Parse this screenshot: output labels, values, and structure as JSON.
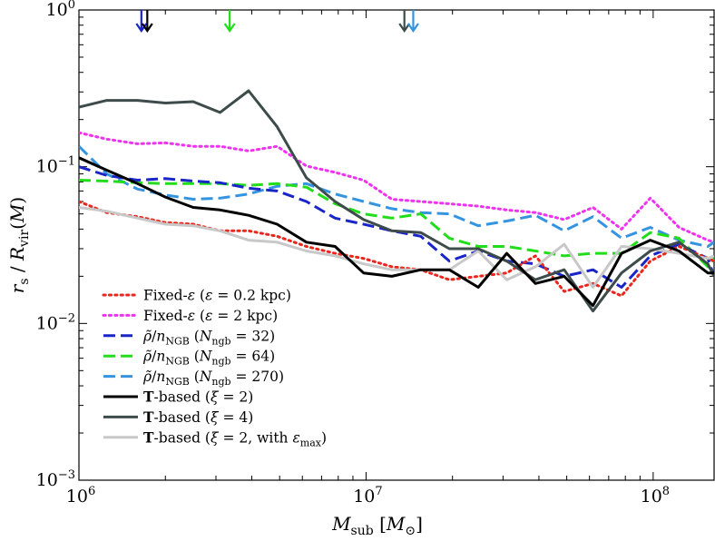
{
  "chart_data": {
    "type": "line",
    "xlabel": "M_sub [M_⊙]",
    "ylabel": "r_s / R_vir(M)",
    "xscale": "log",
    "yscale": "log",
    "xlim": [
      1000000,
      163000000
    ],
    "ylim": [
      0.001,
      1
    ],
    "x_ticks": [
      {
        "value": 1000000,
        "base": "10",
        "exp": "6"
      },
      {
        "value": 10000000,
        "base": "10",
        "exp": "7"
      },
      {
        "value": 100000000,
        "base": "10",
        "exp": "8"
      }
    ],
    "y_ticks": [
      {
        "value": 0.001,
        "base": "10",
        "exp": "−3"
      },
      {
        "value": 0.01,
        "base": "10",
        "exp": "−2"
      },
      {
        "value": 0.1,
        "base": "10",
        "exp": "−1"
      },
      {
        "value": 1,
        "base": "10",
        "exp": "0"
      }
    ],
    "grid": false,
    "legend_position": "bottom-left",
    "legend": [
      {
        "key": "fixed02",
        "segments": [
          [
            "Fixed-",
            "r"
          ],
          [
            "ε",
            "i"
          ],
          [
            " (",
            "r"
          ],
          [
            "ε",
            "i"
          ],
          [
            " = 0.2 kpc)",
            "r"
          ]
        ]
      },
      {
        "key": "fixed2",
        "segments": [
          [
            "Fixed-",
            "r"
          ],
          [
            "ε",
            "i"
          ],
          [
            " (",
            "r"
          ],
          [
            "ε",
            "i"
          ],
          [
            " = 2 kpc)",
            "r"
          ]
        ]
      },
      {
        "key": "ngb32",
        "segments": [
          [
            "ρ̃",
            "i"
          ],
          [
            "/",
            "r"
          ],
          [
            "n",
            "i"
          ],
          [
            "NGB",
            "sub"
          ],
          [
            " (",
            "r"
          ],
          [
            "N",
            "i"
          ],
          [
            "ngb",
            "sub"
          ],
          [
            " = 32)",
            "r"
          ]
        ]
      },
      {
        "key": "ngb64",
        "segments": [
          [
            "ρ̃",
            "i"
          ],
          [
            "/",
            "r"
          ],
          [
            "n",
            "i"
          ],
          [
            "NGB",
            "sub"
          ],
          [
            " (",
            "r"
          ],
          [
            "N",
            "i"
          ],
          [
            "ngb",
            "sub"
          ],
          [
            " = 64)",
            "r"
          ]
        ]
      },
      {
        "key": "ngb270",
        "segments": [
          [
            "ρ̃",
            "i"
          ],
          [
            "/",
            "r"
          ],
          [
            "n",
            "i"
          ],
          [
            "NGB",
            "sub"
          ],
          [
            " (",
            "r"
          ],
          [
            "N",
            "i"
          ],
          [
            "ngb",
            "sub"
          ],
          [
            " = 270)",
            "r"
          ]
        ]
      },
      {
        "key": "t2",
        "segments": [
          [
            "T",
            "b"
          ],
          [
            "-based (",
            "r"
          ],
          [
            "ξ",
            "i"
          ],
          [
            " = 2)",
            "r"
          ]
        ]
      },
      {
        "key": "t4",
        "segments": [
          [
            "T",
            "b"
          ],
          [
            "-based (",
            "r"
          ],
          [
            "ξ",
            "i"
          ],
          [
            " = 4)",
            "r"
          ]
        ]
      },
      {
        "key": "t2max",
        "segments": [
          [
            "T",
            "b"
          ],
          [
            "-based (",
            "r"
          ],
          [
            "ξ",
            "i"
          ],
          [
            " = 2, with ",
            "r"
          ],
          [
            "ε",
            "i"
          ],
          [
            "max",
            "sub"
          ],
          [
            ")",
            "r"
          ]
        ]
      }
    ],
    "series": [
      {
        "key": "fixed02",
        "color": "#e8281e",
        "dash": "dotted",
        "width": 3,
        "x": [
          1000000,
          1250000,
          1600000,
          2000000,
          2500000,
          3100000,
          3900000,
          4900000,
          6200000,
          7800000,
          9800000,
          12300000,
          15500000,
          19500000,
          24600000,
          30900000,
          38900000,
          49000000,
          61700000,
          77600000,
          97700000,
          123000000,
          155000000,
          163000000
        ],
        "y": [
          0.06,
          0.051,
          0.048,
          0.044,
          0.043,
          0.039,
          0.039,
          0.036,
          0.031,
          0.028,
          0.026,
          0.023,
          0.022,
          0.019,
          0.02,
          0.021,
          0.027,
          0.016,
          0.018,
          0.015,
          0.025,
          0.031,
          0.026,
          0.025
        ]
      },
      {
        "key": "fixed2",
        "color": "#ee33ee",
        "dash": "dotted",
        "width": 3,
        "x": [
          1000000,
          1250000,
          1600000,
          2000000,
          2500000,
          3100000,
          3900000,
          4900000,
          6200000,
          7800000,
          9800000,
          12300000,
          15500000,
          19500000,
          24600000,
          30900000,
          38900000,
          49000000,
          61700000,
          77600000,
          97700000,
          123000000,
          155000000,
          163000000
        ],
        "y": [
          0.165,
          0.15,
          0.14,
          0.142,
          0.135,
          0.135,
          0.126,
          0.135,
          0.101,
          0.092,
          0.082,
          0.062,
          0.06,
          0.058,
          0.056,
          0.053,
          0.051,
          0.046,
          0.055,
          0.04,
          0.063,
          0.041,
          0.034,
          0.033
        ]
      },
      {
        "key": "ngb32",
        "color": "#1a25c8",
        "dash": "dashed",
        "width": 3,
        "x": [
          1000000,
          1250000,
          1600000,
          2000000,
          2500000,
          3100000,
          3900000,
          4900000,
          6200000,
          7800000,
          9800000,
          12300000,
          15500000,
          19500000,
          24600000,
          30900000,
          38900000,
          49000000,
          61700000,
          77600000,
          97700000,
          123000000,
          155000000,
          163000000
        ],
        "y": [
          0.1,
          0.088,
          0.082,
          0.084,
          0.081,
          0.079,
          0.073,
          0.07,
          0.06,
          0.047,
          0.043,
          0.039,
          0.036,
          0.025,
          0.029,
          0.025,
          0.024,
          0.02,
          0.022,
          0.017,
          0.027,
          0.032,
          0.026,
          0.02
        ]
      },
      {
        "key": "ngb64",
        "color": "#22dd1a",
        "dash": "dashed",
        "width": 3,
        "x": [
          1000000,
          1250000,
          1600000,
          2000000,
          2500000,
          3100000,
          3900000,
          4900000,
          6200000,
          7800000,
          9800000,
          12300000,
          15500000,
          19500000,
          24600000,
          30900000,
          38900000,
          49000000,
          61700000,
          77600000,
          97700000,
          123000000,
          155000000,
          163000000
        ],
        "y": [
          0.082,
          0.081,
          0.079,
          0.078,
          0.078,
          0.078,
          0.076,
          0.078,
          0.074,
          0.058,
          0.05,
          0.047,
          0.05,
          0.035,
          0.031,
          0.031,
          0.029,
          0.027,
          0.028,
          0.028,
          0.038,
          0.035,
          0.023,
          0.026
        ]
      },
      {
        "key": "ngb270",
        "color": "#3594e0",
        "dash": "dashed",
        "width": 3,
        "x": [
          1000000,
          1250000,
          1600000,
          2000000,
          2500000,
          3100000,
          3900000,
          4900000,
          6200000,
          7800000,
          9800000,
          12300000,
          15500000,
          19500000,
          24600000,
          30900000,
          38900000,
          49000000,
          61700000,
          77600000,
          97700000,
          123000000,
          155000000,
          163000000
        ],
        "y": [
          0.135,
          0.09,
          0.072,
          0.066,
          0.062,
          0.063,
          0.067,
          0.075,
          0.078,
          0.067,
          0.06,
          0.054,
          0.051,
          0.05,
          0.042,
          0.045,
          0.049,
          0.039,
          0.048,
          0.035,
          0.041,
          0.034,
          0.031,
          0.033
        ]
      },
      {
        "key": "t2",
        "color": "#000000",
        "dash": "solid",
        "width": 3,
        "x": [
          1000000,
          1250000,
          1600000,
          2000000,
          2500000,
          3100000,
          3900000,
          4900000,
          6200000,
          7800000,
          9800000,
          12300000,
          15500000,
          19500000,
          24600000,
          30900000,
          38900000,
          49000000,
          61700000,
          77600000,
          97700000,
          123000000,
          155000000,
          163000000
        ],
        "y": [
          0.114,
          0.095,
          0.078,
          0.064,
          0.055,
          0.053,
          0.049,
          0.043,
          0.033,
          0.031,
          0.021,
          0.02,
          0.022,
          0.022,
          0.017,
          0.028,
          0.018,
          0.02,
          0.013,
          0.028,
          0.034,
          0.029,
          0.021,
          0.021
        ]
      },
      {
        "key": "t4",
        "color": "#3d4b4b",
        "dash": "solid",
        "width": 3,
        "x": [
          1000000,
          1250000,
          1600000,
          2000000,
          2500000,
          3100000,
          3900000,
          4900000,
          6200000,
          7800000,
          9800000,
          12300000,
          15500000,
          19500000,
          24600000,
          30900000,
          38900000,
          49000000,
          61700000,
          77600000,
          97700000,
          123000000,
          155000000,
          163000000
        ],
        "y": [
          0.24,
          0.265,
          0.265,
          0.255,
          0.26,
          0.222,
          0.305,
          0.18,
          0.085,
          0.06,
          0.046,
          0.039,
          0.038,
          0.03,
          0.03,
          0.025,
          0.019,
          0.022,
          0.012,
          0.021,
          0.029,
          0.033,
          0.024,
          0.02
        ]
      },
      {
        "key": "t2max",
        "color": "#c8c8c8",
        "dash": "solid",
        "width": 3,
        "x": [
          1000000,
          1250000,
          1600000,
          2000000,
          2500000,
          3100000,
          3900000,
          4900000,
          6200000,
          7800000,
          9800000,
          12300000,
          15500000,
          19500000,
          24600000,
          30900000,
          38900000,
          49000000,
          61700000,
          77600000,
          97700000,
          123000000,
          155000000,
          163000000
        ],
        "y": [
          0.055,
          0.052,
          0.047,
          0.043,
          0.042,
          0.039,
          0.034,
          0.033,
          0.029,
          0.027,
          0.024,
          0.022,
          0.022,
          0.022,
          0.029,
          0.019,
          0.023,
          0.032,
          0.017,
          0.031,
          0.03,
          0.028,
          0.026,
          0.027
        ]
      }
    ],
    "arrows": [
      {
        "x": 1650000,
        "color": "#1a25c8"
      },
      {
        "x": 1730000,
        "color": "#000000"
      },
      {
        "x": 3350000,
        "color": "#22dd1a"
      },
      {
        "x": 13600000,
        "color": "#3d4b4b"
      },
      {
        "x": 14600000,
        "color": "#3594e0"
      }
    ]
  }
}
